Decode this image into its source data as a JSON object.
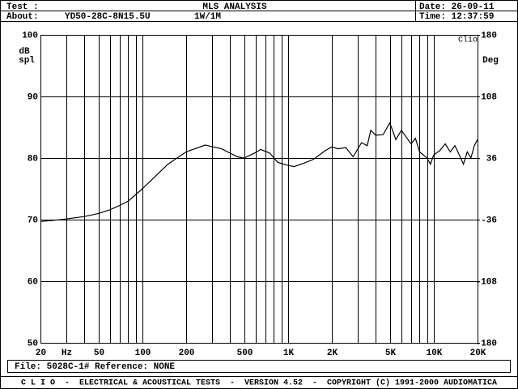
{
  "header": {
    "test_label": "Test :",
    "title": "MLS ANALYSIS",
    "date": "Date: 26-09-11",
    "about_label": "About:",
    "about": "YD50-28C-8N15.5U",
    "level": "1W/1M",
    "time": "Time: 12:37:59"
  },
  "footer": {
    "file": "File: 5028C-1# Reference: NONE",
    "credits": "C L I O  -  ELECTRICAL & ACOUSTICAL TESTS  -  VERSION 4.52  -  COPYRIGHT (C) 1991-2000 AUDIOMATICA"
  },
  "chart_data": {
    "type": "line",
    "ylabel_top": "dB",
    "ylabel_bottom": "spl",
    "y2label": "Deg",
    "corner_label": "Clio",
    "log_x": true,
    "grid": true,
    "color": "#000000",
    "xlim": [
      20,
      20000
    ],
    "ylim": [
      50,
      100
    ],
    "y2lim": [
      -180,
      180
    ],
    "xticks": [
      20,
      {
        "value": 30,
        "label": "Hz"
      },
      50,
      100,
      200,
      500,
      {
        "value": 1000,
        "label": "1K"
      },
      {
        "value": 2000,
        "label": "2K"
      },
      {
        "value": 5000,
        "label": "5K"
      },
      {
        "value": 10000,
        "label": "10K"
      },
      {
        "value": 20000,
        "label": "20K"
      }
    ],
    "xminor_ticks": [
      40,
      60,
      70,
      80,
      90,
      300,
      400,
      600,
      700,
      800,
      900,
      3000,
      4000,
      6000,
      7000,
      8000,
      9000
    ],
    "yticks": [
      100,
      90,
      80,
      70,
      60,
      50
    ],
    "y2ticks": [
      180,
      108,
      36,
      -36,
      -108,
      -180
    ],
    "x": [
      20,
      25,
      30,
      40,
      50,
      60,
      70,
      80,
      100,
      150,
      200,
      270,
      350,
      450,
      500,
      600,
      650,
      750,
      850,
      1000,
      1100,
      1300,
      1500,
      1800,
      2000,
      2200,
      2500,
      2800,
      3200,
      3500,
      3700,
      4000,
      4500,
      5000,
      5500,
      6000,
      7000,
      7500,
      8000,
      9000,
      9500,
      10000,
      11000,
      12000,
      13000,
      14000,
      15000,
      16000,
      17000,
      18000,
      19000,
      20000
    ],
    "series": [
      {
        "values": [
          69.7,
          69.9,
          70.1,
          70.5,
          71.0,
          71.6,
          72.3,
          73.0,
          75.0,
          79.0,
          81.0,
          82.1,
          81.5,
          80.2,
          80.0,
          80.9,
          81.4,
          80.8,
          79.3,
          78.8,
          78.6,
          79.2,
          79.8,
          81.2,
          81.8,
          81.5,
          81.7,
          80.2,
          82.5,
          82.0,
          84.5,
          83.7,
          83.8,
          85.7,
          83.0,
          84.5,
          82.3,
          83.2,
          81.0,
          80.0,
          79.0,
          80.5,
          81.2,
          82.3,
          81.0,
          82.0,
          80.5,
          79.0,
          81.0,
          80.0,
          82.0,
          83.0
        ]
      }
    ]
  }
}
